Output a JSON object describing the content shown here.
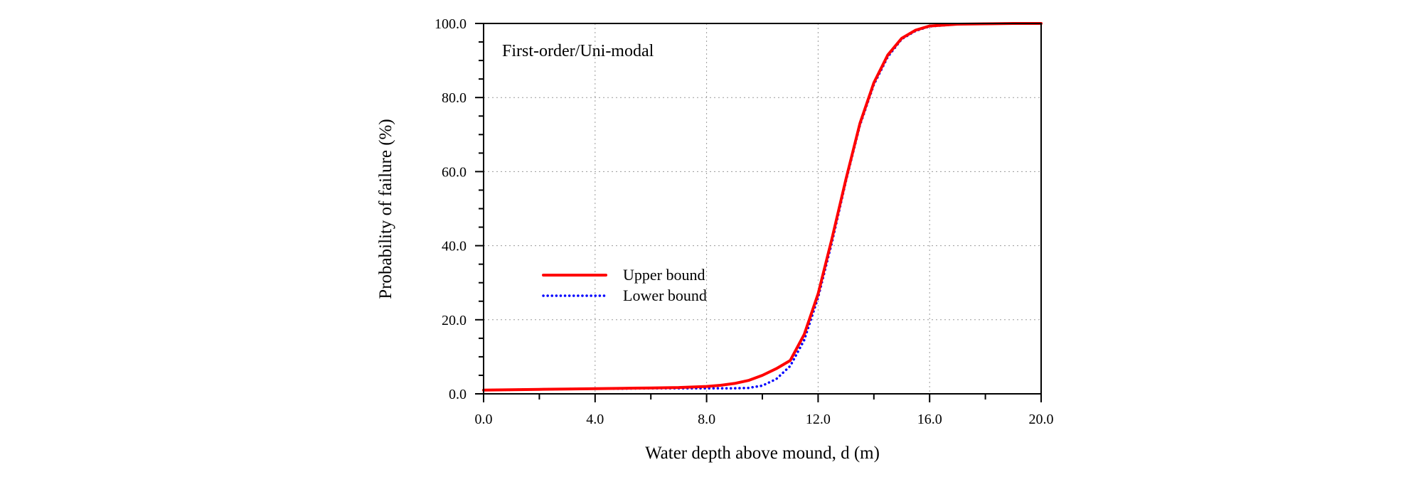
{
  "chart_data": {
    "type": "line",
    "title": "",
    "annotation": "First-order/Uni-modal",
    "xlabel": "Water depth above mound, d (m)",
    "ylabel": "Probability of failure (%)",
    "xlim": [
      0,
      20
    ],
    "ylim": [
      0,
      100
    ],
    "x_ticks": [
      0,
      4,
      8,
      12,
      16,
      20
    ],
    "x_tick_labels": [
      "0.0",
      "4.0",
      "8.0",
      "12.0",
      "16.0",
      "20.0"
    ],
    "y_ticks": [
      0,
      20,
      40,
      60,
      80,
      100
    ],
    "y_tick_labels": [
      "0.0",
      "20.0",
      "40.0",
      "60.0",
      "80.0",
      "100.0"
    ],
    "grid": true,
    "legend_position": "middle-left",
    "series": [
      {
        "name": "Upper bound",
        "color": "#ff0000",
        "style": "solid",
        "x": [
          0,
          1,
          2,
          3,
          4,
          5,
          6,
          7,
          8,
          8.5,
          9,
          9.5,
          10,
          10.5,
          11,
          11.5,
          12,
          12.5,
          13,
          13.5,
          14,
          14.5,
          15,
          15.5,
          16,
          17,
          18,
          19,
          20
        ],
        "y": [
          1.0,
          1.1,
          1.2,
          1.3,
          1.4,
          1.5,
          1.6,
          1.7,
          2.0,
          2.3,
          2.8,
          3.6,
          5.0,
          6.8,
          9.0,
          16.0,
          27.0,
          42.0,
          58.0,
          73.0,
          84.0,
          91.5,
          96.0,
          98.2,
          99.3,
          99.8,
          99.9,
          100.0,
          100.0
        ]
      },
      {
        "name": "Lower bound",
        "color": "#0000ff",
        "style": "dotted",
        "x": [
          0,
          1,
          2,
          3,
          4,
          5,
          6,
          7,
          8,
          8.5,
          9,
          9.5,
          10,
          10.5,
          11,
          11.5,
          12,
          12.5,
          13,
          13.5,
          14,
          14.5,
          15,
          15.5,
          16,
          17,
          18,
          19,
          20
        ],
        "y": [
          1.0,
          1.1,
          1.2,
          1.3,
          1.4,
          1.4,
          1.5,
          1.5,
          1.5,
          1.5,
          1.5,
          1.6,
          2.2,
          4.0,
          7.5,
          14.5,
          26.0,
          41.0,
          57.5,
          72.5,
          83.5,
          91.0,
          95.8,
          98.0,
          99.2,
          99.8,
          99.9,
          100.0,
          100.0
        ]
      }
    ]
  }
}
